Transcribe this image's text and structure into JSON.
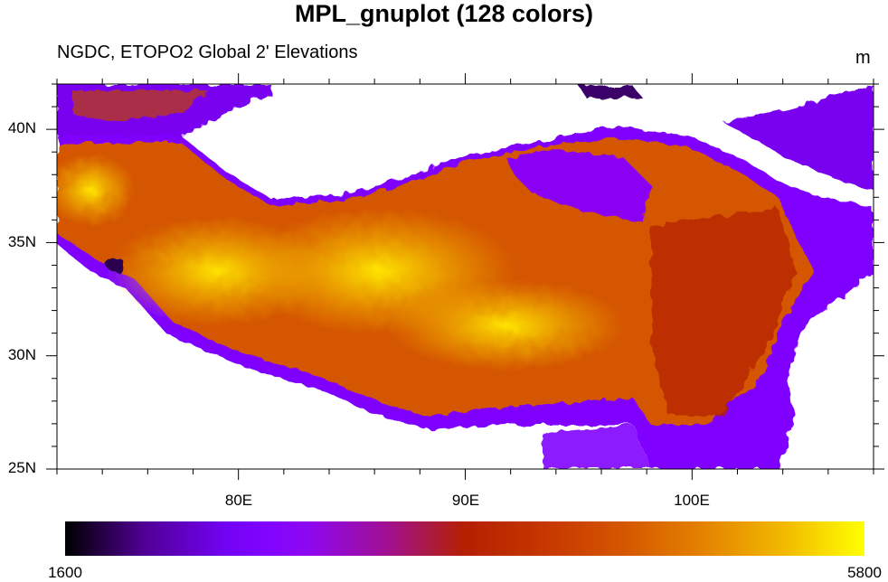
{
  "title": "MPL_gnuplot (128 colors)",
  "subtitle": "NGDC, ETOPO2 Global 2' Elevations",
  "units": "m",
  "map": {
    "lon_range": [
      72,
      108
    ],
    "lat_range": [
      25,
      42
    ],
    "lat_labels": [
      "40N",
      "35N",
      "30N",
      "25N"
    ],
    "lon_labels": [
      "80E",
      "90E",
      "100E"
    ]
  },
  "colorbar": {
    "min_label": "1600",
    "max_label": "5800",
    "min": 1600,
    "max": 5800,
    "levels": 128,
    "colormap": "MPL_gnuplot"
  }
}
